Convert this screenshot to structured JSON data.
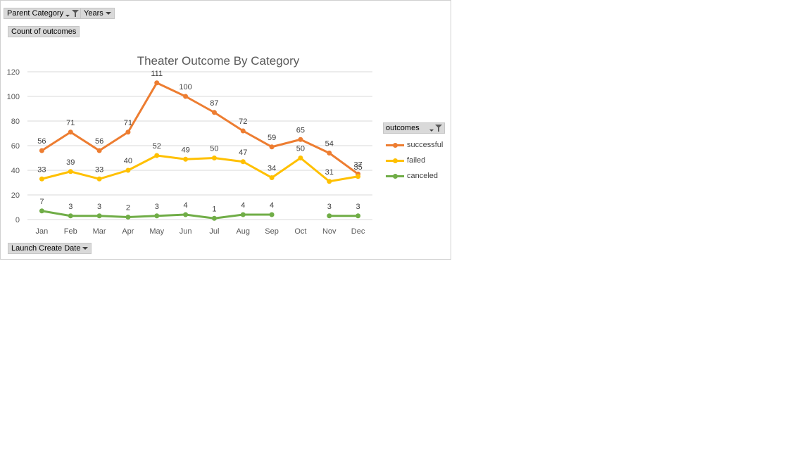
{
  "filters": {
    "parent_category": "Parent Category",
    "years": "Years",
    "value_field": "Count of outcomes",
    "axis_field": "Launch Create Date"
  },
  "legend": {
    "title": "outcomes",
    "items": [
      {
        "label": "successful",
        "color": "#ED7D31"
      },
      {
        "label": "failed",
        "color": "#FFC000"
      },
      {
        "label": "canceled",
        "color": "#70AD47"
      }
    ]
  },
  "chart_data": {
    "type": "line",
    "title": "Theater Outcome By Category",
    "xlabel": "",
    "ylabel": "",
    "categories": [
      "Jan",
      "Feb",
      "Mar",
      "Apr",
      "May",
      "Jun",
      "Jul",
      "Aug",
      "Sep",
      "Oct",
      "Nov",
      "Dec"
    ],
    "ylim": [
      0,
      120
    ],
    "yticks": [
      0,
      20,
      40,
      60,
      80,
      100,
      120
    ],
    "grid": true,
    "legend_position": "right",
    "series": [
      {
        "name": "successful",
        "color": "#ED7D31",
        "values": [
          56,
          71,
          56,
          71,
          111,
          100,
          87,
          72,
          59,
          65,
          54,
          37
        ]
      },
      {
        "name": "failed",
        "color": "#FFC000",
        "values": [
          33,
          39,
          33,
          40,
          52,
          49,
          50,
          47,
          34,
          50,
          31,
          35
        ]
      },
      {
        "name": "canceled",
        "color": "#70AD47",
        "values": [
          7,
          3,
          3,
          2,
          3,
          4,
          1,
          4,
          4,
          null,
          3,
          3
        ]
      }
    ]
  }
}
